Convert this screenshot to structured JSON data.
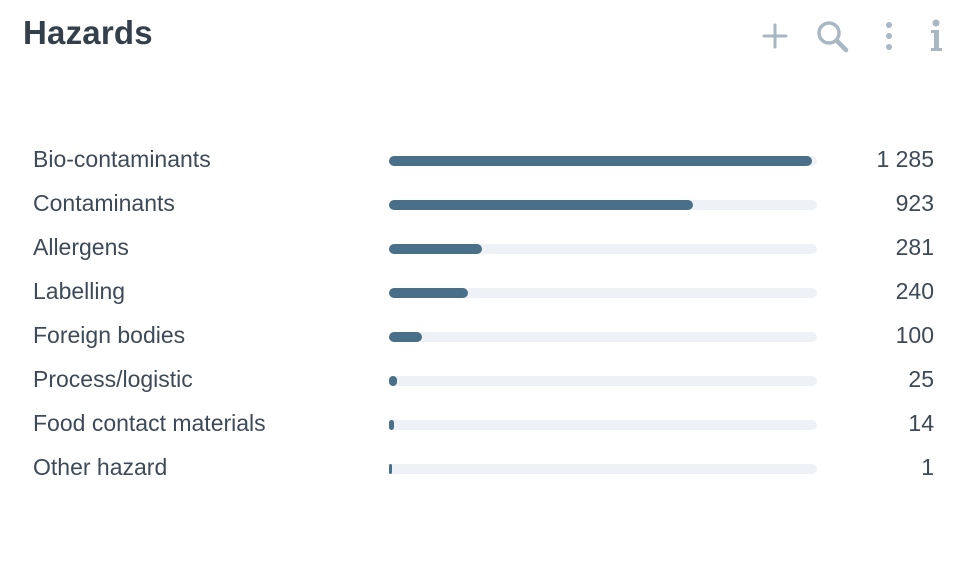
{
  "header": {
    "title": "Hazards"
  },
  "toolbar": {
    "icons": [
      "add-icon",
      "search-icon",
      "more-vertical-icon",
      "info-icon"
    ],
    "icon_color": "#a9b6c4"
  },
  "colors": {
    "bar_fill": "#4a7089",
    "bar_track": "#eef2f7",
    "text": "#3d4a57"
  },
  "chart_data": {
    "type": "bar",
    "orientation": "horizontal",
    "categories": [
      "Bio-contaminants",
      "Contaminants",
      "Allergens",
      "Labelling",
      "Foreign bodies",
      "Process/logistic",
      "Food contact materials",
      "Other hazard"
    ],
    "values": [
      1285,
      923,
      281,
      240,
      100,
      25,
      14,
      1
    ],
    "value_labels": [
      "1 285",
      "923",
      "281",
      "240",
      "100",
      "25",
      "14",
      "1"
    ],
    "xlim": [
      0,
      1300
    ],
    "grid": false,
    "legend": "none"
  }
}
